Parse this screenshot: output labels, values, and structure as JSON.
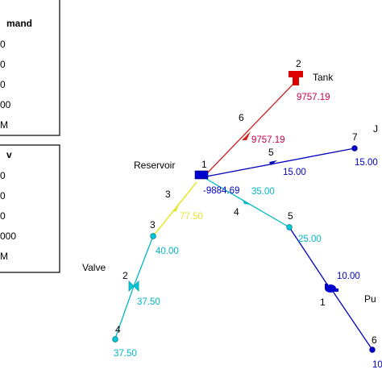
{
  "legends": {
    "node": {
      "title": "mand",
      "items": [
        {
          "label": "0",
          "color": "#0000ff"
        },
        {
          "label": "0",
          "color": "#00ffff"
        },
        {
          "label": "0",
          "color": "#00ff00"
        },
        {
          "label": "00",
          "color": "#ffff00"
        },
        {
          "label": "M",
          "color": "#ff0000"
        }
      ]
    },
    "link": {
      "title": "v",
      "items": [
        {
          "label": "0",
          "color": "#0000ff"
        },
        {
          "label": "0",
          "color": "#00ffff"
        },
        {
          "label": "0",
          "color": "#00ff00"
        },
        {
          "label": "000",
          "color": "#ffff00"
        },
        {
          "label": "M",
          "color": "#ff0000"
        }
      ]
    }
  },
  "network": {
    "nodes": {
      "reservoir": {
        "id": "1",
        "name": "Reservoir",
        "value": "-9884.69",
        "color": "#0000cc"
      },
      "tank": {
        "id": "2",
        "name": "Tank",
        "value": "9757.19",
        "color": "#cc0000"
      },
      "node3": {
        "id": "3",
        "value": "40.00",
        "color": "#00b7c7"
      },
      "node4": {
        "id": "4",
        "value": "37.50",
        "color": "#00b7c7"
      },
      "node5": {
        "id": "5",
        "value": "25.00",
        "color": "#00b7c7"
      },
      "node6": {
        "id": "6",
        "value": "10",
        "color": "#0000cc"
      },
      "node7": {
        "id": "7",
        "name": "J",
        "value": "15.00",
        "color": "#0000cc"
      }
    },
    "links": {
      "link6": {
        "id": "6",
        "value": "9757.19",
        "color": "#cc0000"
      },
      "link5": {
        "id": "5",
        "value": "15.00",
        "color": "#0000cc"
      },
      "link3": {
        "id": "3",
        "value": "77.50",
        "color": "#e6e633"
      },
      "link4": {
        "id": "4",
        "value": "35.00",
        "color": "#00b7c7"
      },
      "valve": {
        "id": "2",
        "name": "Valve",
        "value": "37.50",
        "color": "#00b7c7"
      },
      "link3b": {
        "value": "40.00"
      },
      "link1": {
        "id": "1",
        "value": "10.00",
        "color": "#0000cc"
      },
      "pump": {
        "name": "Pu"
      }
    }
  }
}
